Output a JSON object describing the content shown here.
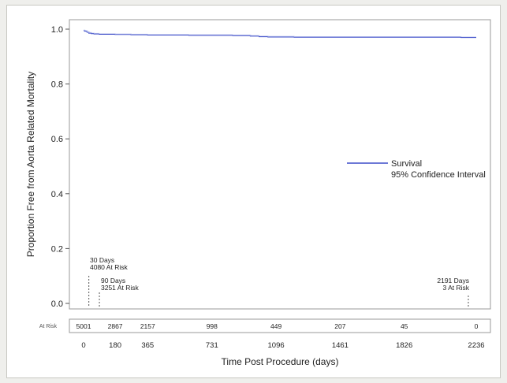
{
  "chart_data": {
    "type": "line",
    "ylabel": "Proportion Free from Aorta Related Mortality",
    "xlabel": "Time Post Procedure (days)",
    "ylim": [
      0,
      1.0
    ],
    "yticks": [
      "0.0",
      "0.2",
      "0.4",
      "0.6",
      "0.8",
      "1.0"
    ],
    "xlim": [
      0,
      2236
    ],
    "xticks": [
      {
        "value": 0,
        "label": "0"
      },
      {
        "value": 180,
        "label": "180"
      },
      {
        "value": 365,
        "label": "365"
      },
      {
        "value": 731,
        "label": "731"
      },
      {
        "value": 1096,
        "label": "1096"
      },
      {
        "value": 1461,
        "label": "1461"
      },
      {
        "value": 1826,
        "label": "1826"
      },
      {
        "value": 2236,
        "label": "2236"
      }
    ],
    "grid": false,
    "series": [
      {
        "name": "Survival",
        "color": "#3b4bc8",
        "x": [
          0,
          8,
          20,
          30,
          45,
          60,
          90,
          120,
          180,
          270,
          365,
          500,
          600,
          731,
          850,
          950,
          1000,
          1050,
          1096,
          1200,
          1461,
          1700,
          1826,
          2000,
          2150,
          2191
        ],
        "y": [
          0.995,
          0.993,
          0.989,
          0.986,
          0.984,
          0.983,
          0.982,
          0.982,
          0.981,
          0.98,
          0.979,
          0.979,
          0.978,
          0.978,
          0.977,
          0.975,
          0.973,
          0.972,
          0.972,
          0.971,
          0.971,
          0.971,
          0.971,
          0.971,
          0.97,
          0.97
        ]
      }
    ],
    "legend": {
      "position": "right",
      "entries": [
        "Survival",
        "95% Confidence Interval"
      ]
    },
    "annotations": [
      {
        "x": 30,
        "line1": "30 Days",
        "line2": "4080 At Risk"
      },
      {
        "x": 90,
        "line1": "90 Days",
        "line2": "3251 At Risk"
      },
      {
        "x": 2191,
        "line1": "2191 Days",
        "line2": "3 At Risk"
      }
    ],
    "at_risk": {
      "label": "At Risk",
      "values": [
        {
          "x": 0,
          "label": "5001"
        },
        {
          "x": 180,
          "label": "2867"
        },
        {
          "x": 365,
          "label": "2157"
        },
        {
          "x": 731,
          "label": "998"
        },
        {
          "x": 1096,
          "label": "449"
        },
        {
          "x": 1461,
          "label": "207"
        },
        {
          "x": 1826,
          "label": "45"
        },
        {
          "x": 2236,
          "label": "0"
        }
      ]
    }
  }
}
